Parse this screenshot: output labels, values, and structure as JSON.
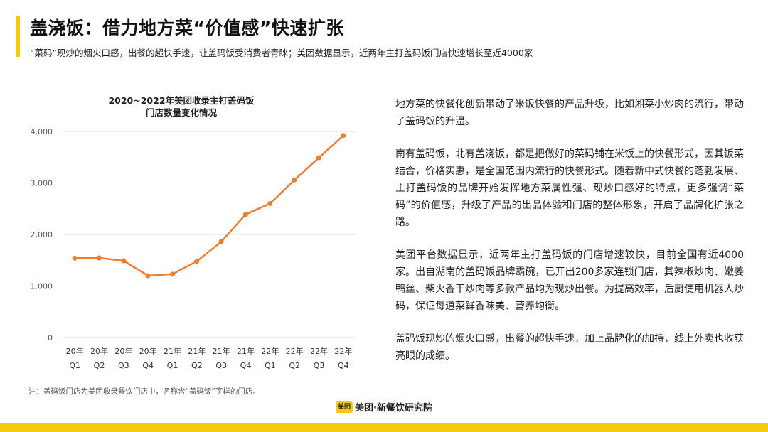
{
  "colors": {
    "accent": "#F6C90E",
    "line": "#ED7D31",
    "grid": "#D9D9D9"
  },
  "header": {
    "title": "盖浇饭：借力地方菜“价值感”快速扩张",
    "subtitle": "“菜码”现炒的烟火口感，出餐的超快手速，让盖码饭受消费者青睐；美团数据显示，近两年主打盖码饭门店快速增长至近4000家"
  },
  "chart_data": {
    "type": "line",
    "title_line1": "2020~2022年美团收录主打盖码饭",
    "title_line2": "门店数量变化情况",
    "categories": [
      [
        "20年",
        "Q1"
      ],
      [
        "20年",
        "Q2"
      ],
      [
        "20年",
        "Q3"
      ],
      [
        "20年",
        "Q4"
      ],
      [
        "21年",
        "Q1"
      ],
      [
        "21年",
        "Q2"
      ],
      [
        "21年",
        "Q3"
      ],
      [
        "21年",
        "Q4"
      ],
      [
        "22年",
        "Q1"
      ],
      [
        "22年",
        "Q2"
      ],
      [
        "22年",
        "Q3"
      ],
      [
        "22年",
        "Q4"
      ]
    ],
    "values": [
      1540,
      1545,
      1490,
      1200,
      1230,
      1480,
      1860,
      2390,
      2600,
      3060,
      3490,
      3920
    ],
    "ylim": [
      0,
      4000
    ],
    "yticks": [
      0,
      1000,
      2000,
      3000,
      4000
    ],
    "ytick_labels": [
      "0",
      "1,000",
      "2,000",
      "3,000",
      "4,000"
    ],
    "grid": true,
    "markers": true,
    "legend": "none"
  },
  "body": {
    "paragraphs": [
      "地方菜的快餐化创新带动了米饭快餐的产品升级，比如湘菜小炒肉的流行，带动了盖码饭的升温。",
      "南有盖码饭，北有盖浇饭，都是把做好的菜码铺在米饭上的快餐形式，因其饭菜结合，价格实惠，是全国范围内流行的快餐形式。随着新中式快餐的蓬勃发展、主打盖码饭的品牌开始发挥地方菜属性强、现炒口感好的特点，更多强调“菜码”的价值感，升级了产品的出品体验和门店的整体形象，开启了品牌化扩张之路。",
      "美团平台数据显示，近两年主打盖码饭的门店增速较快，目前全国有近4000家。出自湖南的盖码饭品牌霸碗，已开出200多家连锁门店，其辣椒炒肉、嫩姜鸭丝、柴火香干炒肉等多款产品均为现炒出餐。为提高效率，后厨使用机器人炒码，保证每道菜鲜香味美、营养均衡。",
      "盖码饭现炒的烟火口感，出餐的超快手速，加上品牌化的加持，线上外卖也收获亮眼的成绩。"
    ]
  },
  "footer": {
    "note": "注：盖码饭门店为美团收录餐饮门店中，名称含“盖码饭”字样的门店。",
    "logo_badge": "美团",
    "logo_text": "美团·新餐饮研究院"
  }
}
